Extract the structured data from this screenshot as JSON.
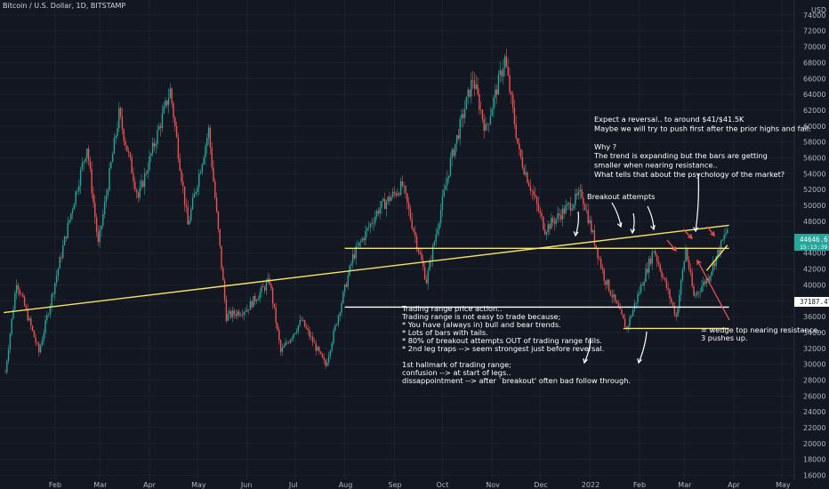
{
  "header": {
    "symbol": "Bitcoin / U.S. Dollar, 1D, BITSTAMP",
    "currency": "USD"
  },
  "colors": {
    "bg": "#131722",
    "up": "#26a69a",
    "down": "#ef5350",
    "grid": "#1e222d",
    "trend": "#f5e663",
    "annot": "#ffffff",
    "red_arrow": "#ef5350"
  },
  "price_tags": {
    "last": {
      "value": "44646.61",
      "sub": "15:13:39",
      "color": "#26a69a"
    },
    "support": {
      "value": "37187.47",
      "color": "#ffffff"
    }
  },
  "notes": {
    "reversal": [
      "Expect a reversal.. to around $41/$41.5K",
      "Maybe we will try to push first after the prior highs and fail.",
      "",
      "Why ?",
      "The trend is expanding but the bars are getting",
      "smaller when nearing resistance..",
      "What tells that about the psychology of the market?"
    ],
    "breakout": "Breakout attempts",
    "range": [
      "Trading range price action..",
      "Trading range is not easy to trade because;",
      "* You have (always in) bull and bear trends.",
      "* Lots of bars with tails.",
      "* 80% of breakout attempts OUT of trading range fails.",
      "* 2nd leg traps --> seem strongest just before reversal.",
      "",
      "1st hallmark of trading range;",
      "confusion --> at start of legs..",
      "dissappointment --> after `breakout' often bad follow through."
    ],
    "wedge": [
      "= wedge top nearing resistance..",
      "3 pushes up."
    ]
  },
  "chart_data": {
    "type": "candlestick",
    "title": "Bitcoin / U.S. Dollar, 1D, BITSTAMP",
    "y_unit": "USD",
    "ylim": [
      15000,
      76000
    ],
    "y_ticks": [
      16000,
      18000,
      20000,
      22000,
      24000,
      26000,
      28000,
      30000,
      32000,
      34000,
      36000,
      38000,
      40000,
      42000,
      44000,
      46000,
      48000,
      50000,
      52000,
      54000,
      56000,
      58000,
      60000,
      62000,
      64000,
      66000,
      68000,
      70000,
      72000,
      74000
    ],
    "x_ticks": [
      "Feb",
      "Mar",
      "Apr",
      "May",
      "Jun",
      "Jul",
      "Aug",
      "Sep",
      "Oct",
      "Nov",
      "Dec",
      "2022",
      "Feb",
      "Mar",
      "Apr",
      "May"
    ],
    "grid": true,
    "price_path_anchors": [
      {
        "date": "2021-01-01",
        "price": 29000
      },
      {
        "date": "2021-01-08",
        "price": 40500
      },
      {
        "date": "2021-01-22",
        "price": 31500
      },
      {
        "date": "2021-02-08",
        "price": 46500
      },
      {
        "date": "2021-02-21",
        "price": 57500
      },
      {
        "date": "2021-02-28",
        "price": 45000
      },
      {
        "date": "2021-03-13",
        "price": 61500
      },
      {
        "date": "2021-03-25",
        "price": 51000
      },
      {
        "date": "2021-04-14",
        "price": 64500
      },
      {
        "date": "2021-04-25",
        "price": 47500
      },
      {
        "date": "2021-05-08",
        "price": 59500
      },
      {
        "date": "2021-05-19",
        "price": 36000
      },
      {
        "date": "2021-06-01",
        "price": 37000
      },
      {
        "date": "2021-06-15",
        "price": 40500
      },
      {
        "date": "2021-06-22",
        "price": 31500
      },
      {
        "date": "2021-07-05",
        "price": 35500
      },
      {
        "date": "2021-07-20",
        "price": 29800
      },
      {
        "date": "2021-08-06",
        "price": 43500
      },
      {
        "date": "2021-08-22",
        "price": 49500
      },
      {
        "date": "2021-09-06",
        "price": 52500
      },
      {
        "date": "2021-09-21",
        "price": 40500
      },
      {
        "date": "2021-10-06",
        "price": 55500
      },
      {
        "date": "2021-10-20",
        "price": 66000
      },
      {
        "date": "2021-10-28",
        "price": 59500
      },
      {
        "date": "2021-11-09",
        "price": 68500
      },
      {
        "date": "2021-11-18",
        "price": 56500
      },
      {
        "date": "2021-12-04",
        "price": 47000
      },
      {
        "date": "2021-12-27",
        "price": 51500
      },
      {
        "date": "2022-01-10",
        "price": 41000
      },
      {
        "date": "2022-01-24",
        "price": 34500
      },
      {
        "date": "2022-02-10",
        "price": 44500
      },
      {
        "date": "2022-02-24",
        "price": 36000
      },
      {
        "date": "2022-03-02",
        "price": 44500
      },
      {
        "date": "2022-03-07",
        "price": 38500
      },
      {
        "date": "2022-03-16",
        "price": 41000
      },
      {
        "date": "2022-03-28",
        "price": 47000
      }
    ],
    "last_price": 44646.61,
    "levels": [
      {
        "name": "trading-range-top",
        "price": 44600,
        "from": "2021-08-01",
        "to": "2022-03-29"
      },
      {
        "name": "support",
        "price": 37187.47,
        "from": "2021-08-01",
        "to": "2022-03-29"
      },
      {
        "name": "range-bottom",
        "price": 34500,
        "from": "2022-01-22",
        "to": "2022-03-29"
      }
    ],
    "trendlines": [
      {
        "name": "long-trendline",
        "from": {
          "date": "2020-12-31",
          "price": 36500
        },
        "to": {
          "date": "2022-03-29",
          "price": 47500
        }
      },
      {
        "name": "wedge-line",
        "from": {
          "date": "2022-03-15",
          "price": 41800
        },
        "to": {
          "date": "2022-03-28",
          "price": 45000
        }
      }
    ]
  }
}
